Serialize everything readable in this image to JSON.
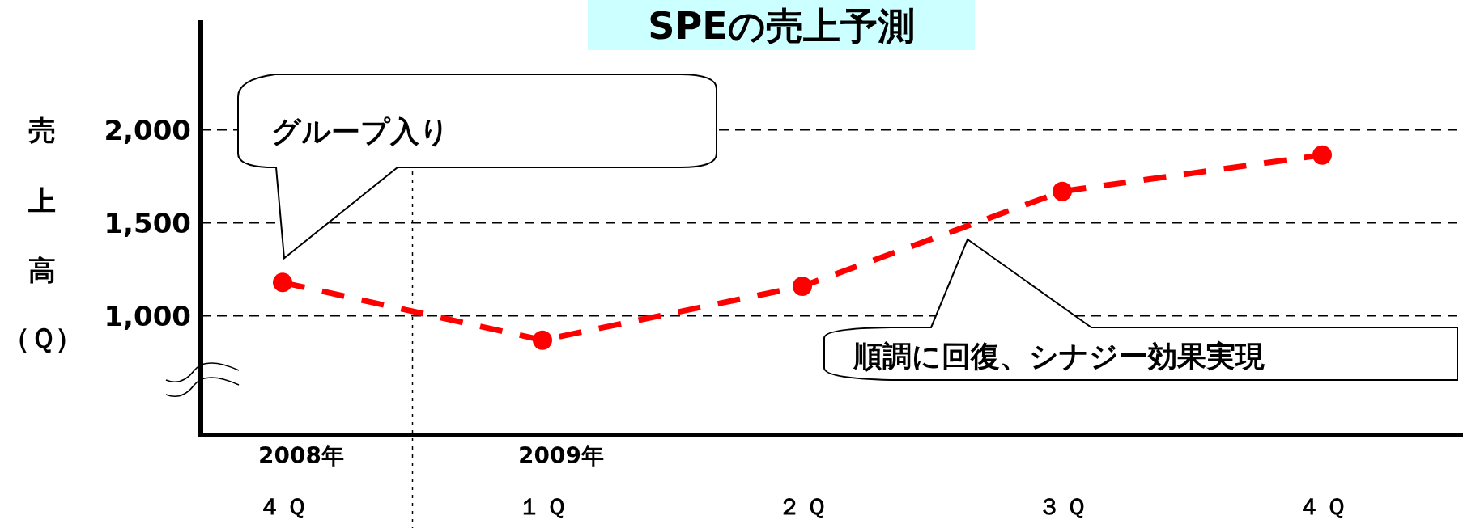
{
  "chart_data": {
    "type": "line",
    "title": "SPEの売上予測",
    "ylabel": "売上高（Ｑ）",
    "categories": [
      "４Ｑ",
      "１Ｑ",
      "２Ｑ",
      "３Ｑ",
      "４Ｑ"
    ],
    "series": [
      {
        "color": "#ff0000",
        "values": [
          1180,
          870,
          1160,
          1670,
          1865
        ]
      }
    ],
    "ylim": [
      360,
      2590
    ],
    "yticks": [
      {
        "value": 1000,
        "label": "1,000"
      },
      {
        "value": 1500,
        "label": "1,500"
      },
      {
        "value": 2000,
        "label": "2,000"
      }
    ],
    "grid": "y",
    "marker": "circle",
    "line_style": "dashed",
    "annotations": [
      "グループ入り",
      "順調に回復、シナジー効果実現",
      "2008年",
      "2009年"
    ]
  }
}
